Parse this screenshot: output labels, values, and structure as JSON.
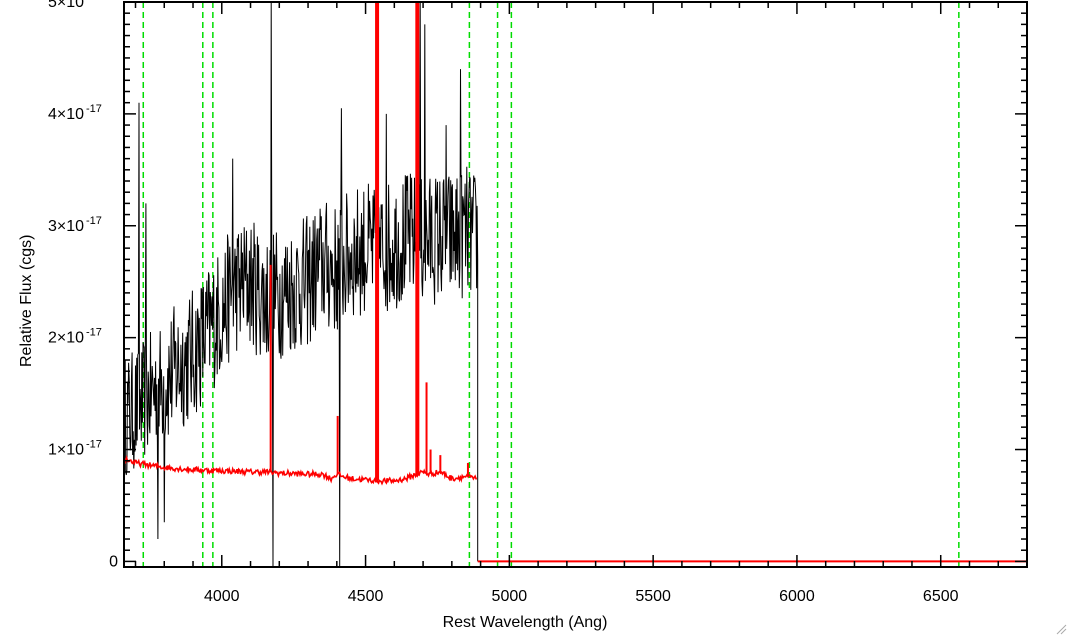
{
  "chart_data": {
    "type": "line",
    "title": "",
    "xlabel": "Rest Wavelength (Ang)",
    "ylabel": "Relative Flux (cgs)",
    "xlim": [
      3660,
      6800
    ],
    "ylim": [
      -5e-19,
      5e-17
    ],
    "x_ticks": [
      4000,
      4500,
      5000,
      5500,
      6000,
      6500
    ],
    "x_tick_labels": [
      "4000",
      "4500",
      "5000",
      "5500",
      "6000",
      "6500"
    ],
    "y_ticks": [
      0,
      1e-17,
      2e-17,
      3e-17,
      4e-17,
      5e-17
    ],
    "y_tick_labels": [
      {
        "mantissa": "0",
        "exponent": ""
      },
      {
        "mantissa": "1×10",
        "exponent": "-17"
      },
      {
        "mantissa": "2×10",
        "exponent": "-17"
      },
      {
        "mantissa": "3×10",
        "exponent": "-17"
      },
      {
        "mantissa": "4×10",
        "exponent": "-17"
      },
      {
        "mantissa": "5×10",
        "exponent": "-17"
      }
    ],
    "grid": false,
    "vlines": {
      "color": "#00dd00",
      "style": "dashed",
      "x": [
        3727,
        3934,
        3969,
        4861,
        4959,
        5007,
        6563
      ]
    },
    "series": [
      {
        "color": "#000000",
        "style": "noisy spectrum",
        "x": [
          3660,
          3700,
          3750,
          3800,
          3850,
          3900,
          3950,
          4000,
          4050,
          4100,
          4150,
          4200,
          4250,
          4300,
          4350,
          4400,
          4450,
          4500,
          4550,
          4600,
          4650,
          4700,
          4750,
          4800,
          4850,
          4880
        ],
        "y": [
          1.3e-17,
          1.35e-17,
          1.5e-17,
          1.6e-17,
          1.75e-17,
          1.85e-17,
          2.05e-17,
          2.25e-17,
          2.45e-17,
          2.5e-17,
          2.35e-17,
          2.4e-17,
          2.45e-17,
          2.5e-17,
          2.65e-17,
          2.6e-17,
          2.75e-17,
          2.8e-17,
          2.75e-17,
          2.85e-17,
          2.9e-17,
          2.85e-17,
          2.9e-17,
          2.9e-17,
          2.95e-17,
          2.9e-17
        ],
        "spikes": [
          {
            "x": 3712,
            "y": 4.1e-17
          },
          {
            "x": 3735,
            "y": 3.2e-17
          },
          {
            "x": 3778,
            "y": 2e-18
          },
          {
            "x": 3800,
            "y": 3.5e-18
          },
          {
            "x": 4172,
            "y": 5e-17
          },
          {
            "x": 4178,
            "y": -5e-19
          },
          {
            "x": 4038,
            "y": 3.6e-17
          },
          {
            "x": 4410,
            "y": -5e-19
          },
          {
            "x": 4415,
            "y": 4.05e-17
          },
          {
            "x": 4572,
            "y": 4e-17
          },
          {
            "x": 4705,
            "y": 4.8e-17
          },
          {
            "x": 4690,
            "y": 5e-17
          },
          {
            "x": 4780,
            "y": 3.9e-17
          },
          {
            "x": 4830,
            "y": 4.4e-17
          }
        ],
        "x_end": 4890
      },
      {
        "color": "#ff0000",
        "style": "model",
        "x": [
          3660,
          3700,
          3750,
          3800,
          3900,
          4000,
          4100,
          4150,
          4200,
          4300,
          4350,
          4380,
          4400,
          4420,
          4450,
          4500,
          4550,
          4600,
          4640,
          4660,
          4700,
          4720,
          4760,
          4800,
          4850,
          4880
        ],
        "y": [
          9.2e-18,
          8.8e-18,
          8.6e-18,
          8.4e-18,
          8.2e-18,
          8.1e-18,
          8e-18,
          8e-18,
          7.9e-18,
          7.8e-18,
          7.8e-18,
          7.4e-18,
          7.8e-18,
          7.6e-18,
          7.4e-18,
          7.3e-18,
          7.2e-18,
          7.2e-18,
          7.4e-18,
          7.6e-18,
          8e-18,
          7.8e-18,
          8e-18,
          7.4e-18,
          7.6e-18,
          7.4e-18
        ],
        "lines": [
          {
            "x": 4170,
            "y": 2.65e-17
          },
          {
            "x": 4403,
            "y": 1.3e-17
          },
          {
            "x": 4540,
            "y": 5e-17
          },
          {
            "x": 4680,
            "y": 5e-17
          },
          {
            "x": 4712,
            "y": 1.6e-17
          },
          {
            "x": 4726,
            "y": 1e-17
          },
          {
            "x": 4760,
            "y": 9.5e-18
          },
          {
            "x": 4856,
            "y": 8.8e-18
          }
        ],
        "flat_after": {
          "x": 4890,
          "y": 0
        }
      }
    ]
  }
}
